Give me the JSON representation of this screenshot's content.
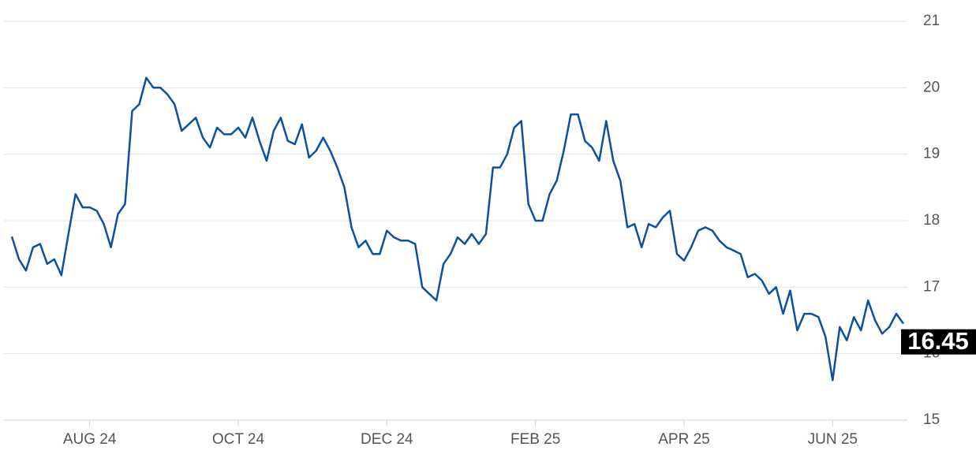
{
  "chart_data": {
    "type": "line",
    "categories": [
      null,
      null,
      null,
      null,
      null,
      null,
      null,
      null,
      null,
      null,
      null,
      "AUG 24",
      null,
      null,
      null,
      null,
      null,
      null,
      null,
      null,
      null,
      null,
      null,
      null,
      null,
      null,
      null,
      null,
      null,
      null,
      null,
      null,
      "OCT 24",
      null,
      null,
      null,
      null,
      null,
      null,
      null,
      null,
      null,
      null,
      null,
      null,
      null,
      null,
      null,
      null,
      null,
      null,
      null,
      null,
      "DEC 24",
      null,
      null,
      null,
      null,
      null,
      null,
      null,
      null,
      null,
      null,
      null,
      null,
      null,
      null,
      null,
      null,
      null,
      null,
      null,
      null,
      "FEB 25",
      null,
      null,
      null,
      null,
      null,
      null,
      null,
      null,
      null,
      null,
      null,
      null,
      null,
      null,
      null,
      null,
      null,
      null,
      null,
      null,
      "APR 25",
      null,
      null,
      null,
      null,
      null,
      null,
      null,
      null,
      null,
      null,
      null,
      null,
      null,
      null,
      null,
      null,
      null,
      null,
      null,
      null,
      "JUN 25",
      null,
      null,
      null,
      null,
      null,
      null,
      null,
      null,
      null,
      null
    ],
    "values": [
      17.76,
      17.42,
      17.25,
      17.6,
      17.65,
      17.35,
      17.42,
      17.18,
      17.8,
      18.4,
      18.2,
      18.2,
      18.15,
      17.95,
      17.6,
      18.1,
      18.25,
      19.65,
      19.75,
      20.15,
      20.0,
      20.0,
      19.9,
      19.75,
      19.35,
      19.45,
      19.55,
      19.25,
      19.1,
      19.4,
      19.3,
      19.3,
      19.4,
      19.25,
      19.55,
      19.2,
      18.9,
      19.35,
      19.55,
      19.2,
      19.15,
      19.45,
      18.95,
      19.05,
      19.25,
      19.05,
      18.8,
      18.5,
      17.9,
      17.6,
      17.7,
      17.5,
      17.5,
      17.85,
      17.75,
      17.7,
      17.7,
      17.65,
      17.0,
      16.9,
      16.8,
      17.35,
      17.5,
      17.75,
      17.65,
      17.8,
      17.65,
      17.8,
      18.8,
      18.8,
      19.0,
      19.4,
      19.5,
      18.25,
      18.0,
      18.0,
      18.4,
      18.6,
      19.05,
      19.6,
      19.6,
      19.2,
      19.1,
      18.9,
      19.5,
      18.9,
      18.6,
      17.9,
      17.95,
      17.6,
      17.95,
      17.9,
      18.05,
      18.15,
      17.5,
      17.4,
      17.6,
      17.85,
      17.9,
      17.85,
      17.7,
      17.6,
      17.55,
      17.5,
      17.15,
      17.2,
      17.1,
      16.9,
      17.0,
      16.6,
      16.95,
      16.35,
      16.6,
      16.6,
      16.55,
      16.25,
      15.6,
      16.4,
      16.2,
      16.55,
      16.35,
      16.8,
      16.5,
      16.3,
      16.4,
      16.6,
      16.45
    ],
    "color": "#0b51a1",
    "last_value": 16.45,
    "ylim": [
      15,
      21
    ],
    "yticks": [
      15,
      16,
      17,
      18,
      19,
      20,
      21
    ],
    "grid": true
  }
}
